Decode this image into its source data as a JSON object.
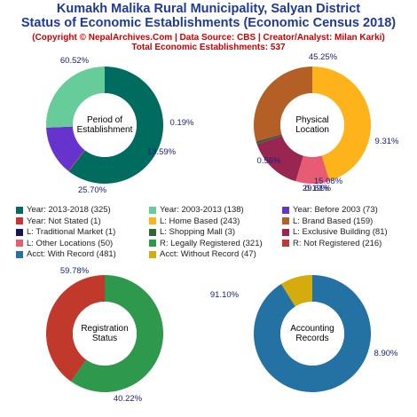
{
  "header": {
    "title_line1": "Kumakh Malika Rural Municipality, Salyan District",
    "title_line2": "Status of Economic Establishments (Economic Census 2018)",
    "copyright": "(Copyright © NepalArchives.Com | Data Source: CBS | Creator/Analyst: Milan Karki)",
    "total": "Total Economic Establishments: 537"
  },
  "chart_data": [
    {
      "type": "pie",
      "center_label": [
        "Period of",
        "Establishment"
      ],
      "slices": [
        {
          "label": "Year: 2013-2018",
          "value": 325,
          "pct_label": "60.52%",
          "color": "#006b5f"
        },
        {
          "label": "Year: 2003-2013",
          "value": 138,
          "pct_label": "25.70%",
          "color": "#66cc99"
        },
        {
          "label": "Year: Before 2003",
          "value": 73,
          "pct_label": "13.59%",
          "color": "#6633cc"
        },
        {
          "label": "Year: Not Stated",
          "value": 1,
          "pct_label": "0.19%",
          "color": "#cc3333"
        }
      ]
    },
    {
      "type": "pie",
      "center_label": [
        "Physical",
        "Location"
      ],
      "slices": [
        {
          "label": "L: Home Based",
          "value": 243,
          "pct_label": "45.25%",
          "color": "#ffb31a"
        },
        {
          "label": "L: Brand Based",
          "value": 159,
          "pct_label": "29.61%",
          "color": "#b35f26"
        },
        {
          "label": "L: Traditional Market",
          "value": 1,
          "pct_label": "0.19%",
          "color": "#141459"
        },
        {
          "label": "L: Shopping Mall",
          "value": 3,
          "pct_label": "0.56%",
          "color": "#336633"
        },
        {
          "label": "L: Exclusive Building",
          "value": 81,
          "pct_label": "15.08%",
          "color": "#992650"
        },
        {
          "label": "L: Other Locations",
          "value": 50,
          "pct_label": "9.31%",
          "color": "#e65c73"
        }
      ]
    },
    {
      "type": "pie",
      "center_label": [
        "Registration",
        "Status"
      ],
      "slices": [
        {
          "label": "R: Legally Registered",
          "value": 321,
          "pct_label": "59.78%",
          "color": "#2e994d"
        },
        {
          "label": "R: Not Registered",
          "value": 216,
          "pct_label": "40.22%",
          "color": "#c0392b"
        }
      ]
    },
    {
      "type": "pie",
      "center_label": [
        "Accounting",
        "Records"
      ],
      "slices": [
        {
          "label": "Acct: With Record",
          "value": 481,
          "pct_label": "91.10%",
          "color": "#2471a3"
        },
        {
          "label": "Acct: Without Record",
          "value": 47,
          "pct_label": "8.90%",
          "color": "#d4ac0d"
        }
      ]
    }
  ],
  "legend": [
    {
      "text": "Year: 2013-2018 (325)",
      "color": "#006b5f"
    },
    {
      "text": "Year: 2003-2013 (138)",
      "color": "#66cc99"
    },
    {
      "text": "Year: Before 2003 (73)",
      "color": "#6633cc"
    },
    {
      "text": "Year: Not Stated (1)",
      "color": "#cc3333"
    },
    {
      "text": "L: Home Based (243)",
      "color": "#ffb31a"
    },
    {
      "text": "L: Brand Based (159)",
      "color": "#b35f26"
    },
    {
      "text": "L: Traditional Market (1)",
      "color": "#141459"
    },
    {
      "text": "L: Shopping Mall (3)",
      "color": "#336633"
    },
    {
      "text": "L: Exclusive Building (81)",
      "color": "#992650"
    },
    {
      "text": "L: Other Locations (50)",
      "color": "#e65c73"
    },
    {
      "text": "R: Legally Registered (321)",
      "color": "#2e994d"
    },
    {
      "text": "R: Not Registered (216)",
      "color": "#c0392b"
    },
    {
      "text": "Acct: With Record (481)",
      "color": "#2471a3"
    },
    {
      "text": "Acct: Without Record (47)",
      "color": "#d4ac0d"
    }
  ]
}
